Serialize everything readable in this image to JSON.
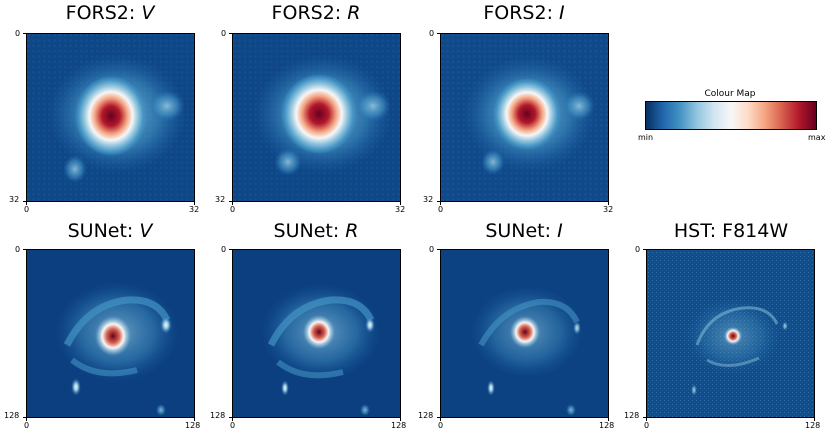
{
  "panels": {
    "fors2_v": {
      "prefix": "FORS2: ",
      "band": "V",
      "tick_min": "0",
      "tick_max": "32"
    },
    "fors2_r": {
      "prefix": "FORS2: ",
      "band": "R",
      "tick_min": "0",
      "tick_max": "32"
    },
    "fors2_i": {
      "prefix": "FORS2: ",
      "band": "I",
      "tick_min": "0",
      "tick_max": "32"
    },
    "sunet_v": {
      "prefix": "SUNet: ",
      "band": "V",
      "tick_min": "0",
      "tick_max": "128"
    },
    "sunet_r": {
      "prefix": "SUNet: ",
      "band": "R",
      "tick_min": "0",
      "tick_max": "128"
    },
    "sunet_i": {
      "prefix": "SUNet: ",
      "band": "I",
      "tick_min": "0",
      "tick_max": "128"
    },
    "hst": {
      "title": "HST: F814W",
      "tick_min": "0",
      "tick_max": "128"
    }
  },
  "colorbar": {
    "title": "Colour Map",
    "min_label": "min",
    "max_label": "max"
  },
  "colors": {
    "low": "#053061",
    "mid": "#f7f7f7",
    "high": "#67001f"
  }
}
